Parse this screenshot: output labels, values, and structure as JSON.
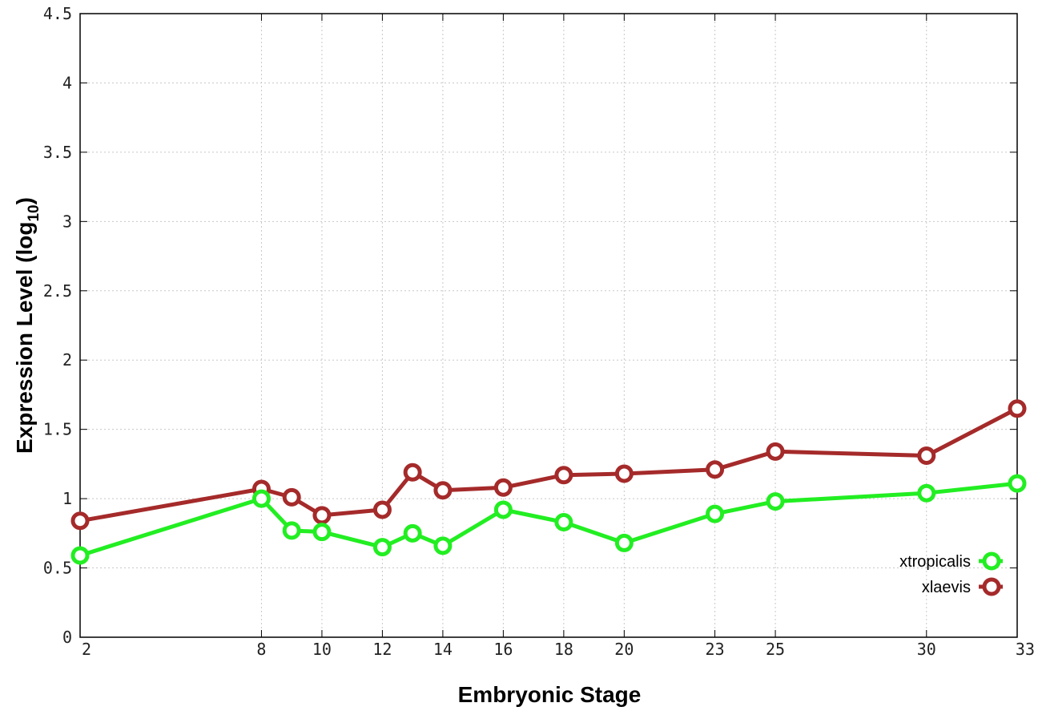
{
  "chart_data": {
    "type": "line",
    "xlabel": "Embryonic Stage",
    "ylabel_main": "Expression Level (log",
    "ylabel_sub": "10",
    "ylabel_close": ")",
    "ylim": [
      0,
      4.5
    ],
    "y_ticks": [
      0,
      0.5,
      1,
      1.5,
      2,
      2.5,
      3,
      3.5,
      4,
      4.5
    ],
    "y_tick_labels": [
      "0",
      "0.5",
      "1",
      "1.5",
      "2",
      "2.5",
      "3",
      "3.5",
      "4",
      "4.5"
    ],
    "x": [
      2,
      8,
      9,
      10,
      12,
      13,
      14,
      16,
      18,
      20,
      23,
      25,
      30,
      33
    ],
    "x_tick_labels": [
      "2",
      "8",
      "10",
      "12",
      "14",
      "16",
      "18",
      "20",
      "23",
      "25",
      "30",
      "33"
    ],
    "grid": true,
    "legend_position": "bottom-right",
    "series": [
      {
        "name": "xtropicalis",
        "color": "#22ee22",
        "values": [
          0.59,
          1.0,
          0.77,
          0.76,
          0.65,
          0.75,
          0.66,
          0.92,
          0.83,
          0.68,
          0.89,
          0.98,
          1.04,
          1.11
        ]
      },
      {
        "name": "xlaevis",
        "color": "#a52a2a",
        "values": [
          0.84,
          1.07,
          1.01,
          0.88,
          0.92,
          1.19,
          1.06,
          1.08,
          1.17,
          1.18,
          1.21,
          1.34,
          1.31,
          1.65
        ]
      }
    ]
  }
}
